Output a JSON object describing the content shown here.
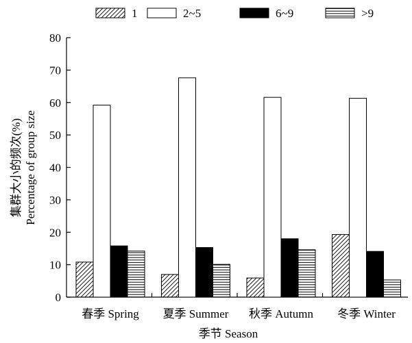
{
  "chart_data": {
    "type": "bar",
    "xlabel": "季节 Season",
    "ylabel_line1": "集群大小的频次(%)",
    "ylabel_line2": "Percentage of group size",
    "ylim": [
      0,
      80
    ],
    "yticks": [
      0,
      10,
      20,
      30,
      40,
      50,
      60,
      70,
      80
    ],
    "categories": [
      "春季 Spring",
      "夏季 Summer",
      "秋季 Autumn",
      "冬季 Winter"
    ],
    "legend_position": "top",
    "grid": false,
    "series": [
      {
        "name": "1",
        "pattern": "diagonal-hatch",
        "values": [
          10.8,
          7.0,
          5.9,
          19.3
        ]
      },
      {
        "name": "2~5",
        "pattern": "white",
        "values": [
          59.2,
          67.6,
          61.6,
          61.3
        ]
      },
      {
        "name": "6~9",
        "pattern": "solid-black",
        "values": [
          15.8,
          15.3,
          18.0,
          14.1
        ]
      },
      {
        "name": ">9",
        "pattern": "horizontal-lines",
        "values": [
          14.2,
          10.1,
          14.6,
          5.3
        ]
      }
    ],
    "colors": {
      "fill_white": "#ffffff",
      "fill_black": "#000000",
      "stroke": "#000000"
    }
  }
}
